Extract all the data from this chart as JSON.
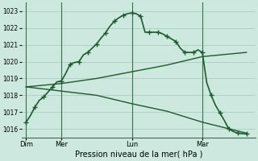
{
  "bg_color": "#cde8df",
  "grid_color": "#a8cfc0",
  "line_color": "#1a5c2a",
  "title": "Pression niveau de la mer( hPa )",
  "ylim": [
    1015.5,
    1023.5
  ],
  "yticks": [
    1016,
    1017,
    1018,
    1019,
    1020,
    1021,
    1022,
    1023
  ],
  "day_labels": [
    "Dim",
    "Mer",
    "Lun",
    "Mar"
  ],
  "day_positions": [
    0,
    8,
    24,
    40
  ],
  "xlim": [
    -1,
    52
  ],
  "line1_x": [
    0,
    1,
    2,
    3,
    4,
    5,
    6,
    7,
    8,
    9,
    10,
    11,
    12,
    13,
    14,
    15,
    16,
    17,
    18,
    19,
    20,
    21,
    22,
    23,
    24,
    25,
    26,
    27,
    28,
    29,
    30,
    31,
    32,
    33,
    34,
    35,
    36,
    37,
    38,
    39,
    40,
    41,
    42,
    43,
    44,
    45,
    46,
    47,
    48,
    49,
    50
  ],
  "line1_y": [
    1016.4,
    1016.8,
    1017.3,
    1017.7,
    1017.9,
    1018.2,
    1018.5,
    1018.8,
    1018.85,
    1019.3,
    1019.85,
    1019.95,
    1020.0,
    1020.4,
    1020.55,
    1020.8,
    1021.05,
    1021.4,
    1021.7,
    1022.1,
    1022.4,
    1022.6,
    1022.75,
    1022.85,
    1022.9,
    1022.85,
    1022.7,
    1021.75,
    1021.75,
    1021.75,
    1021.75,
    1021.65,
    1021.5,
    1021.35,
    1021.2,
    1020.8,
    1020.55,
    1020.55,
    1020.55,
    1020.7,
    1020.55,
    1018.75,
    1018.0,
    1017.4,
    1016.95,
    1016.5,
    1016.0,
    1015.85,
    1015.75,
    1015.72,
    1015.7
  ],
  "line2_x": [
    0,
    8,
    16,
    24,
    32,
    40,
    50
  ],
  "line2_y": [
    1018.5,
    1018.7,
    1019.0,
    1019.4,
    1019.8,
    1020.3,
    1020.55
  ],
  "line3_x": [
    0,
    8,
    16,
    24,
    32,
    40,
    50
  ],
  "line3_y": [
    1018.5,
    1018.25,
    1018.0,
    1017.5,
    1017.05,
    1016.4,
    1015.75
  ],
  "marker_size": 4,
  "linewidth": 1.2,
  "thin_linewidth": 1.0
}
